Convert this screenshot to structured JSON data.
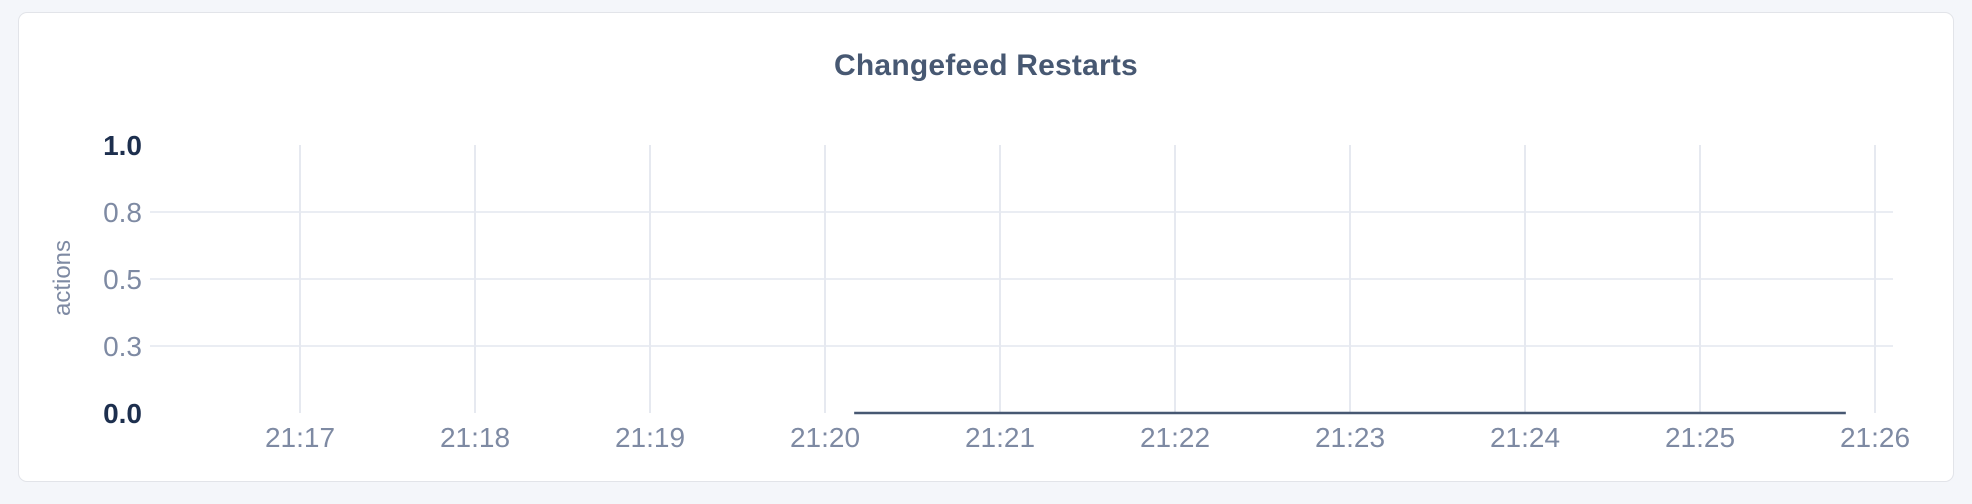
{
  "page": {
    "background_color": "#f4f6fa"
  },
  "card": {
    "background_color": "#ffffff",
    "border_color": "#e2e4e9"
  },
  "chart_data": {
    "type": "line",
    "title": "Changefeed Restarts",
    "xlabel": "",
    "ylabel": "actions",
    "ylim": [
      0,
      1
    ],
    "x_range": [
      "21:17",
      "21:26"
    ],
    "x_ticks": [
      "21:17",
      "21:18",
      "21:19",
      "21:20",
      "21:21",
      "21:22",
      "21:23",
      "21:24",
      "21:25",
      "21:26"
    ],
    "y_ticks": [
      {
        "label": "0.0",
        "value": 0.0,
        "emphasis": true
      },
      {
        "label": "0.3",
        "value": 0.25,
        "emphasis": false
      },
      {
        "label": "0.5",
        "value": 0.5,
        "emphasis": false
      },
      {
        "label": "0.8",
        "value": 0.75,
        "emphasis": false
      },
      {
        "label": "1.0",
        "value": 1.0,
        "emphasis": true
      }
    ],
    "grid": {
      "vertical_at_every_x_tick": true,
      "horizontal_at_mid_ticks_only": true
    },
    "legend_position": "none",
    "series": [
      {
        "name": "actions",
        "color": "#475872",
        "points": [
          {
            "time": "21:20:10",
            "value": 0
          },
          {
            "time": "21:25:50",
            "value": 0
          }
        ]
      }
    ],
    "colors": {
      "title": "#475872",
      "tick_label": "#7e8aa3",
      "tick_label_emphasis": "#1d2f4e",
      "gridline_vertical": "#e6e9f0",
      "gridline_horizontal": "#eaedf3",
      "line": "#475872"
    }
  }
}
